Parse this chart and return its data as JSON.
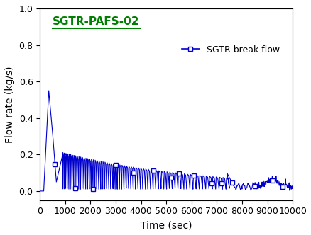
{
  "title": "SGTR-PAFS-02",
  "legend_label": "SGTR break flow",
  "xlabel": "Time (sec)",
  "ylabel": "Flow rate (kg/s)",
  "line_color": "#0000CD",
  "title_color": "#008000",
  "xlim": [
    0,
    10000
  ],
  "ylim": [
    -0.05,
    1.0
  ],
  "yticks": [
    0.0,
    0.2,
    0.4,
    0.6,
    0.8,
    1.0
  ],
  "xticks": [
    0,
    1000,
    2000,
    3000,
    4000,
    5000,
    6000,
    7000,
    8000,
    9000,
    10000
  ],
  "figsize": [
    4.39,
    3.32
  ],
  "dpi": 100
}
